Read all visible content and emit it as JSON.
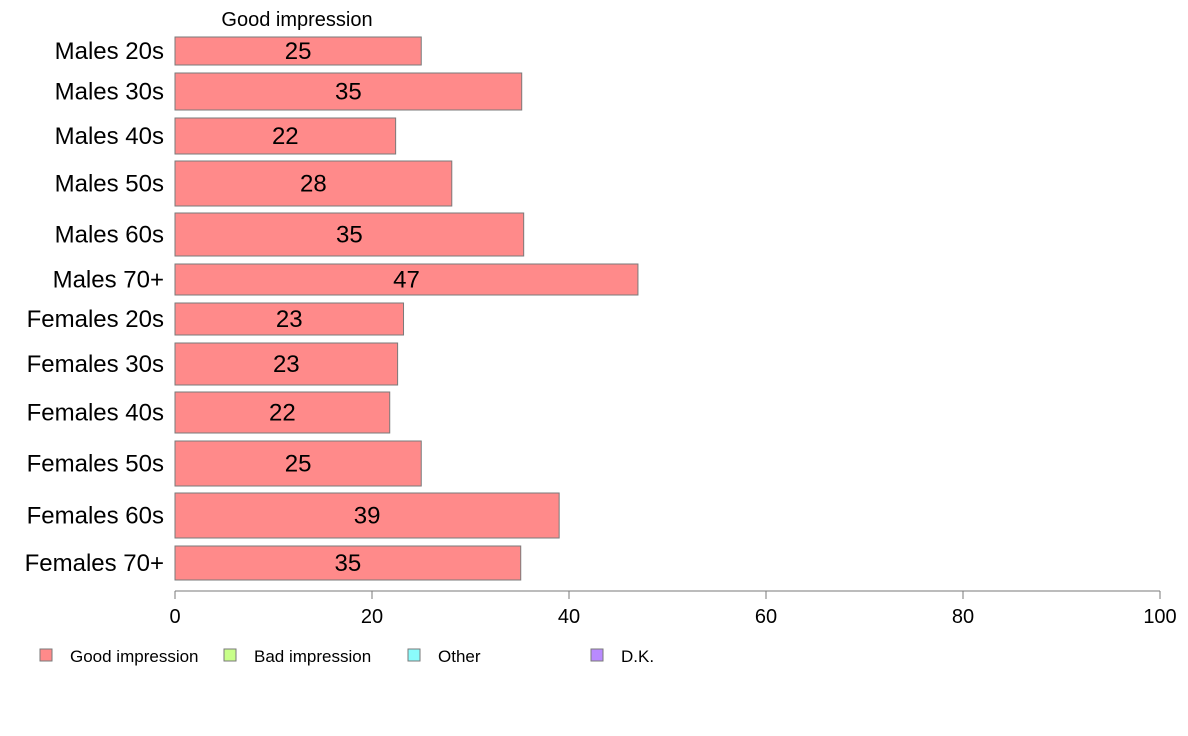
{
  "chart_data": {
    "type": "bar",
    "orientation": "horizontal",
    "column_header": "Good impression",
    "categories": [
      "Males 20s",
      "Males 30s",
      "Males 40s",
      "Males 50s",
      "Males 60s",
      "Males 70+",
      "Females 20s",
      "Females 30s",
      "Females 40s",
      "Females 50s",
      "Females 60s",
      "Females 70+"
    ],
    "series": [
      {
        "name": "Good impression",
        "color": "#ff8a8a",
        "values": [
          25,
          35.2,
          22.4,
          28.1,
          35.4,
          47,
          23.2,
          22.6,
          21.8,
          25,
          39,
          35.1
        ],
        "labels": [
          "25",
          "35",
          "22",
          "28",
          "35",
          "47",
          "23",
          "23",
          "22",
          "25",
          "39",
          "35"
        ]
      }
    ],
    "xlim": [
      0,
      100
    ],
    "xticks": [
      "0",
      "20",
      "40",
      "60",
      "80",
      "100"
    ],
    "grid": false,
    "legend": {
      "placement": "bottom-left",
      "entries": [
        {
          "label": "Good impression",
          "color": "#ff8a8a"
        },
        {
          "label": "Bad impression",
          "color": "#c8ff8a"
        },
        {
          "label": "Other",
          "color": "#8afbfb"
        },
        {
          "label": "D.K.",
          "color": "#b98aff"
        }
      ]
    }
  }
}
